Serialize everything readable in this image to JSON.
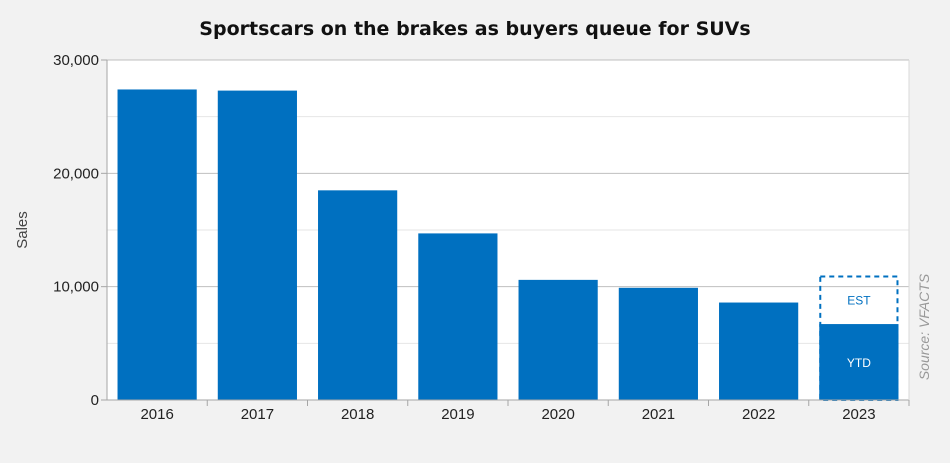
{
  "chart_data": {
    "type": "bar",
    "title": "Sportscars on the brakes as buyers queue for SUVs",
    "ylabel": "Sales",
    "xlabel": "",
    "ylim": [
      0,
      30000
    ],
    "yticks": [
      "0",
      "10,000",
      "20,000",
      "30,000"
    ],
    "ytick_values": [
      0,
      10000,
      20000,
      30000
    ],
    "minor_gridlines": [
      5000,
      15000,
      25000
    ],
    "grid": true,
    "legend": "none",
    "categories": [
      "2016",
      "2017",
      "2018",
      "2019",
      "2020",
      "2021",
      "2022",
      "2023"
    ],
    "series": [
      {
        "values": [
          27400,
          27300,
          18500,
          14700,
          10600,
          9900,
          8600,
          6700
        ]
      }
    ],
    "estimate": {
      "category": "2023",
      "value": 10900,
      "label": "EST",
      "style": "dashed-outline"
    },
    "bar_labels": [
      {
        "category": "2023",
        "text": "YTD"
      }
    ],
    "source": "Source: VFACTS"
  },
  "colors": {
    "bar": "#0070c0",
    "estimate_outline": "#0070c0",
    "grid_major": "#bfbfbf",
    "grid_minor": "#e6e6e6",
    "plot_background": "#ffffff",
    "page_background": "#f2f2f2"
  }
}
